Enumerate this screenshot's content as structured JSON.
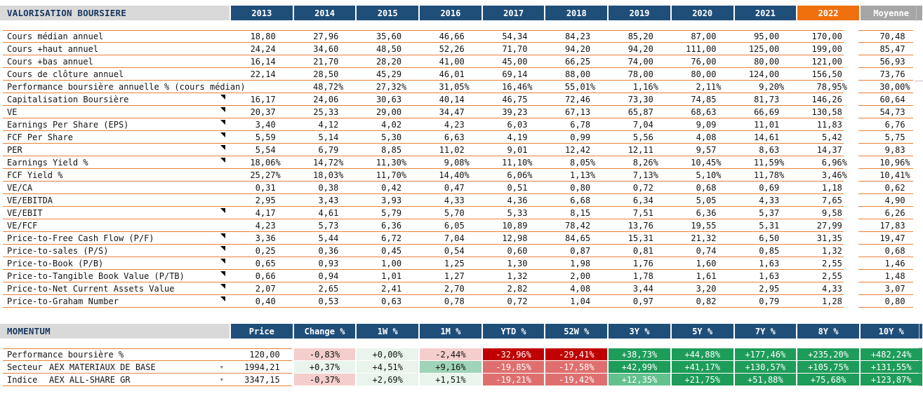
{
  "valuation": {
    "title": "VALORISATION BOURSIERE",
    "columns": [
      "2013",
      "2014",
      "2015",
      "2016",
      "2017",
      "2018",
      "2019",
      "2020",
      "2021",
      "2022",
      "Moyenne"
    ],
    "highlight_column": "2022",
    "average_column": "Moyenne",
    "rows": [
      {
        "label": "Cours médian annuel",
        "marker": false,
        "values": [
          "18,80",
          "27,96",
          "35,60",
          "46,66",
          "54,34",
          "84,23",
          "85,20",
          "87,00",
          "95,00",
          "170,00",
          "70,48"
        ]
      },
      {
        "label": "Cours +haut annuel",
        "marker": false,
        "values": [
          "24,24",
          "34,60",
          "48,50",
          "52,26",
          "71,70",
          "94,20",
          "94,20",
          "111,00",
          "125,00",
          "199,00",
          "85,47"
        ]
      },
      {
        "label": "Cours +bas annuel",
        "marker": false,
        "values": [
          "16,14",
          "21,70",
          "28,20",
          "41,00",
          "45,00",
          "66,25",
          "74,00",
          "76,00",
          "80,00",
          "121,00",
          "56,93"
        ]
      },
      {
        "label": "Cours de clôture annuel",
        "marker": false,
        "values": [
          "22,14",
          "28,50",
          "45,29",
          "46,01",
          "69,14",
          "88,00",
          "78,00",
          "80,00",
          "124,00",
          "156,50",
          "73,76"
        ]
      },
      {
        "label": "Performance boursière annuelle % (cours médian)",
        "marker": false,
        "values": [
          "",
          "48,72%",
          "27,32%",
          "31,05%",
          "16,46%",
          "55,01%",
          "1,16%",
          "2,11%",
          "9,20%",
          "78,95%",
          "30,00%"
        ]
      },
      {
        "label": "Capitalisation Boursière",
        "marker": true,
        "values": [
          "16,17",
          "24,06",
          "30,63",
          "40,14",
          "46,75",
          "72,46",
          "73,30",
          "74,85",
          "81,73",
          "146,26",
          "60,64"
        ]
      },
      {
        "label": "VE",
        "marker": true,
        "values": [
          "20,37",
          "25,33",
          "29,00",
          "34,47",
          "39,23",
          "67,13",
          "65,87",
          "68,63",
          "66,69",
          "130,58",
          "54,73"
        ]
      },
      {
        "label": "Earnings Per Share (EPS)",
        "marker": true,
        "values": [
          "3,40",
          "4,12",
          "4,02",
          "4,23",
          "6,03",
          "6,78",
          "7,04",
          "9,09",
          "11,01",
          "11,83",
          "6,76"
        ]
      },
      {
        "label": "FCF Per Share",
        "marker": true,
        "values": [
          "5,59",
          "5,14",
          "5,30",
          "6,63",
          "4,19",
          "0,99",
          "5,56",
          "4,08",
          "14,61",
          "5,42",
          "5,75"
        ]
      },
      {
        "label": "PER",
        "marker": true,
        "values": [
          "5,54",
          "6,79",
          "8,85",
          "11,02",
          "9,01",
          "12,42",
          "12,11",
          "9,57",
          "8,63",
          "14,37",
          "9,83"
        ]
      },
      {
        "label": "Earnings Yield %",
        "marker": true,
        "values": [
          "18,06%",
          "14,72%",
          "11,30%",
          "9,08%",
          "11,10%",
          "8,05%",
          "8,26%",
          "10,45%",
          "11,59%",
          "6,96%",
          "10,96%"
        ]
      },
      {
        "label": "FCF Yield %",
        "marker": false,
        "values": [
          "25,27%",
          "18,03%",
          "11,70%",
          "14,40%",
          "6,06%",
          "1,13%",
          "7,13%",
          "5,10%",
          "11,78%",
          "3,46%",
          "10,41%"
        ]
      },
      {
        "label": "VE/CA",
        "marker": false,
        "values": [
          "0,31",
          "0,38",
          "0,42",
          "0,47",
          "0,51",
          "0,80",
          "0,72",
          "0,68",
          "0,69",
          "1,18",
          "0,62"
        ]
      },
      {
        "label": "VE/EBITDA",
        "marker": false,
        "values": [
          "2,95",
          "3,43",
          "3,93",
          "4,33",
          "4,36",
          "6,68",
          "6,34",
          "5,05",
          "4,33",
          "7,65",
          "4,90"
        ]
      },
      {
        "label": "VE/EBIT",
        "marker": true,
        "values": [
          "4,17",
          "4,61",
          "5,79",
          "5,70",
          "5,33",
          "8,15",
          "7,51",
          "6,36",
          "5,37",
          "9,58",
          "6,26"
        ]
      },
      {
        "label": "VE/FCF",
        "marker": false,
        "values": [
          "4,23",
          "5,73",
          "6,36",
          "6,05",
          "10,89",
          "78,42",
          "13,76",
          "19,55",
          "5,31",
          "27,99",
          "17,83"
        ]
      },
      {
        "label": "Price-to-Free Cash Flow (P/F)",
        "marker": true,
        "values": [
          "3,36",
          "5,44",
          "6,72",
          "7,04",
          "12,98",
          "84,65",
          "15,31",
          "21,32",
          "6,50",
          "31,35",
          "19,47"
        ]
      },
      {
        "label": "Price-to-sales (P/S)",
        "marker": true,
        "values": [
          "0,25",
          "0,36",
          "0,45",
          "0,54",
          "0,60",
          "0,87",
          "0,81",
          "0,74",
          "0,85",
          "1,32",
          "0,68"
        ]
      },
      {
        "label": "Price-to-Book (P/B)",
        "marker": true,
        "values": [
          "0,65",
          "0,93",
          "1,00",
          "1,25",
          "1,30",
          "1,98",
          "1,76",
          "1,60",
          "1,63",
          "2,55",
          "1,46"
        ]
      },
      {
        "label": "Price-to-Tangible Book Value (P/TB)",
        "marker": true,
        "values": [
          "0,66",
          "0,94",
          "1,01",
          "1,27",
          "1,32",
          "2,00",
          "1,78",
          "1,61",
          "1,63",
          "2,55",
          "1,48"
        ]
      },
      {
        "label": "Price-to-Net Current Assets Value",
        "marker": true,
        "values": [
          "2,07",
          "2,65",
          "2,41",
          "2,70",
          "2,82",
          "4,08",
          "3,44",
          "3,20",
          "2,95",
          "4,33",
          "3,07"
        ]
      },
      {
        "label": "Price-to-Graham Number",
        "marker": true,
        "values": [
          "0,40",
          "0,53",
          "0,63",
          "0,78",
          "0,72",
          "1,04",
          "0,97",
          "0,82",
          "0,79",
          "1,28",
          "0,80"
        ]
      }
    ]
  },
  "momentum": {
    "title": "MOMENTUM",
    "columns": [
      "Price",
      "Change %",
      "1W %",
      "1M %",
      "YTD %",
      "52W %",
      "3Y %",
      "5Y %",
      "7Y %",
      "8Y %",
      "10Y %"
    ],
    "rows": [
      {
        "label": "Performance boursière %",
        "sublabel": "",
        "dropdown": false,
        "price": "120,00",
        "cells": [
          {
            "t": "-0,83%",
            "c": "pink"
          },
          {
            "t": "+0,00%",
            "c": "lgreen"
          },
          {
            "t": "-2,44%",
            "c": "pink"
          },
          {
            "t": "-32,96%",
            "c": "dred"
          },
          {
            "t": "-29,41%",
            "c": "dred"
          },
          {
            "t": "+38,73%",
            "c": "green"
          },
          {
            "t": "+44,88%",
            "c": "green"
          },
          {
            "t": "+177,46%",
            "c": "green"
          },
          {
            "t": "+235,20%",
            "c": "green"
          },
          {
            "t": "+482,24%",
            "c": "green"
          }
        ]
      },
      {
        "label": "Secteur",
        "sublabel": "AEX MATERIAUX DE BASE",
        "dropdown": true,
        "price": "1994,21",
        "cells": [
          {
            "t": "+0,37%",
            "c": "lgreen"
          },
          {
            "t": "+4,51%",
            "c": "lgreen"
          },
          {
            "t": "+9,16%",
            "c": "mgreen"
          },
          {
            "t": "-19,85%",
            "c": "salmon"
          },
          {
            "t": "-17,58%",
            "c": "salmon"
          },
          {
            "t": "+42,99%",
            "c": "green"
          },
          {
            "t": "+41,17%",
            "c": "green"
          },
          {
            "t": "+130,57%",
            "c": "green"
          },
          {
            "t": "+105,75%",
            "c": "green"
          },
          {
            "t": "+131,55%",
            "c": "green"
          }
        ]
      },
      {
        "label": "Indice",
        "sublabel": "AEX ALL-SHARE GR",
        "dropdown": true,
        "price": "3347,15",
        "cells": [
          {
            "t": "-0,37%",
            "c": "pink"
          },
          {
            "t": "+2,69%",
            "c": "lgreen"
          },
          {
            "t": "+1,51%",
            "c": "lgreen"
          },
          {
            "t": "-19,21%",
            "c": "salmon"
          },
          {
            "t": "-19,42%",
            "c": "salmon"
          },
          {
            "t": "+12,35%",
            "c": "mdgreen"
          },
          {
            "t": "+21,75%",
            "c": "green"
          },
          {
            "t": "+51,88%",
            "c": "green"
          },
          {
            "t": "+75,68%",
            "c": "green"
          },
          {
            "t": "+123,87%",
            "c": "green"
          }
        ]
      }
    ]
  },
  "colors": {
    "header_navy": "#1F4E79",
    "header_orange_2022": "#F0700E",
    "header_gray_moyenne": "#A6A6A6",
    "section_bar_gray": "#D9D9D9",
    "row_line_orange": "#E8803C",
    "cell_light_red": "#F4CECC",
    "cell_light_green": "#E9F4EC",
    "cell_medium_green": "#A0D4B8",
    "cell_mid_green": "#63C18E",
    "cell_strong_green": "#1E9C5A",
    "cell_dark_red": "#C00000",
    "cell_salmon_red": "#DF6F6F"
  }
}
